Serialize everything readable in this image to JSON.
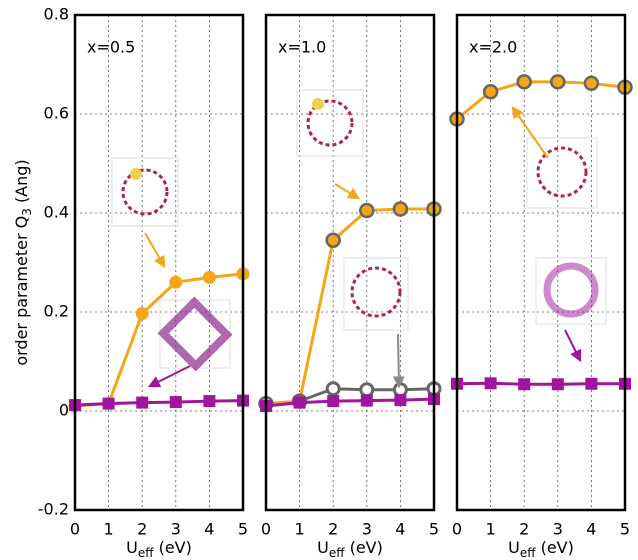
{
  "chart_data": [
    {
      "type": "line",
      "label": "x=0.5",
      "x": [
        0,
        1,
        2,
        3,
        4,
        5
      ],
      "xlim": [
        0,
        5
      ],
      "xticks": [
        0,
        1,
        2,
        3,
        4,
        5
      ],
      "ylim": [
        -0.2,
        0.8
      ],
      "yticks": [
        -0.2,
        0,
        0.2,
        0.4,
        0.6,
        0.8
      ],
      "grid": true,
      "ylabel_parts": [
        "order parameter Q",
        "3",
        " (Ang)"
      ],
      "xlabel_parts": [
        "U",
        "eff",
        " (eV)"
      ],
      "series": [
        {
          "color": "#f5a516",
          "edge": "#f5a516",
          "marker": "circle",
          "values": [
            0.01,
            0.015,
            0.197,
            0.26,
            0.27,
            0.277
          ]
        },
        {
          "color": "#a0149e",
          "edge": "#a0149e",
          "marker": "square",
          "values": [
            0.012,
            0.015,
            0.017,
            0.018,
            0.02,
            0.021
          ]
        }
      ]
    },
    {
      "type": "line",
      "label": "x=1.0",
      "x": [
        0,
        1,
        2,
        3,
        4,
        5
      ],
      "xlim": [
        0,
        5
      ],
      "xticks": [
        0,
        1,
        2,
        3,
        4,
        5
      ],
      "ylim": [
        -0.2,
        0.8
      ],
      "grid": true,
      "xlabel_parts": [
        "U",
        "eff",
        " (eV)"
      ],
      "series": [
        {
          "color": "#f5a516",
          "edge": "#666666",
          "marker": "circle",
          "values": [
            0.015,
            0.02,
            0.345,
            0.405,
            0.408,
            0.408
          ]
        },
        {
          "color": "#ffffff",
          "edge": "#666666",
          "marker": "ring",
          "values": [
            null,
            0.02,
            0.045,
            0.043,
            0.043,
            0.045
          ]
        },
        {
          "color": "#a0149e",
          "edge": "#a0149e",
          "marker": "square",
          "values": [
            0.01,
            0.017,
            0.02,
            0.021,
            0.022,
            0.024
          ]
        }
      ]
    },
    {
      "type": "line",
      "label": "x=2.0",
      "x": [
        0,
        1,
        2,
        3,
        4,
        5
      ],
      "xlim": [
        0,
        5
      ],
      "xticks": [
        0,
        1,
        2,
        3,
        4,
        5
      ],
      "ylim": [
        -0.2,
        0.8
      ],
      "grid": true,
      "xlabel_parts": [
        "U",
        "eff",
        " (eV)"
      ],
      "series": [
        {
          "color": "#f5a516",
          "edge": "#666666",
          "marker": "circle",
          "values": [
            0.59,
            0.645,
            0.665,
            0.665,
            0.662,
            0.654
          ]
        },
        {
          "color": "#a0149e",
          "edge": "#a0149e",
          "marker": "square",
          "values": [
            0.055,
            0.056,
            0.054,
            0.054,
            0.055,
            0.055
          ]
        }
      ]
    }
  ]
}
